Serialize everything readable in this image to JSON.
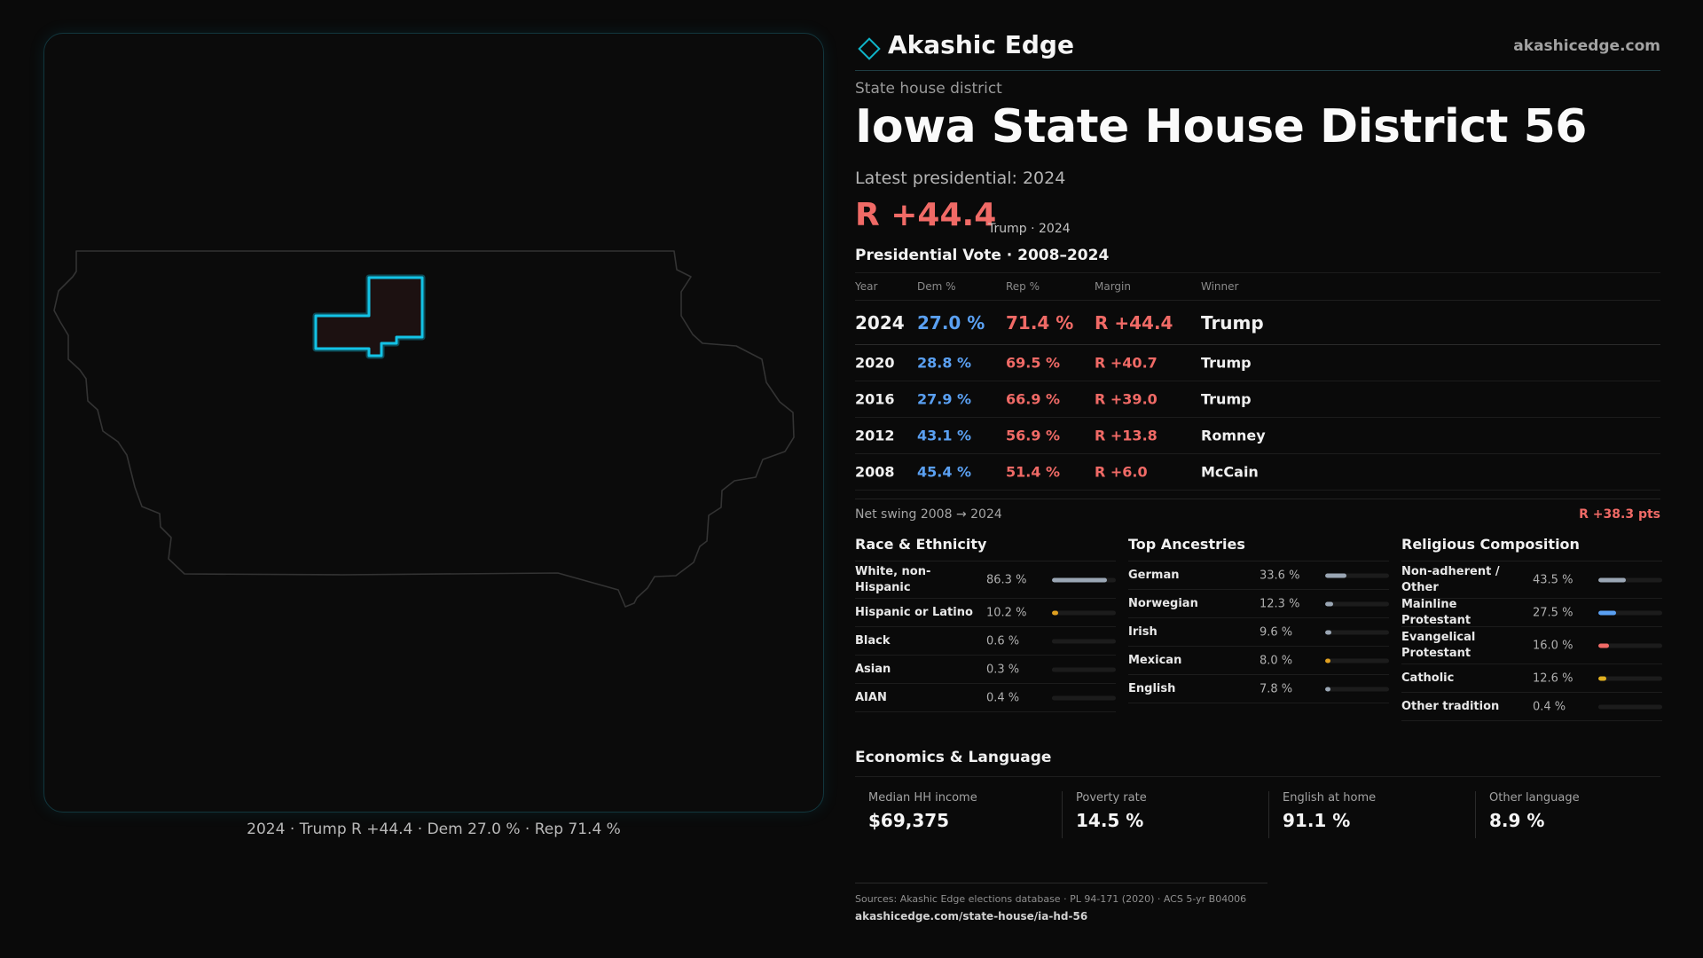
{
  "brand": {
    "name": "Akashic Edge",
    "url": "akashicedge.com",
    "logo_icon": "diamond-outline-icon",
    "accent": "#0fb4c8"
  },
  "district": {
    "kind": "State house district",
    "title": "Iowa State House District 56",
    "latest_label": "Latest presidential: 2024",
    "margin": "R +44.4",
    "margin_meta": "Trump · 2024"
  },
  "map": {
    "caption": "2024 · Trump R +44.4 · Dem 27.0 % · Rep 71.4 %",
    "state_outline_color": "#3a3a3a",
    "district_outline_color": "#13c3e6"
  },
  "votes": {
    "title": "Presidential Vote · 2008–2024",
    "headers": {
      "year": "Year",
      "dem": "Dem %",
      "rep": "Rep %",
      "margin": "Margin",
      "winner": "Winner"
    },
    "rows": [
      {
        "year": "2024",
        "dem": "27.0 %",
        "rep": "71.4 %",
        "margin": "R +44.4",
        "winner": "Trump"
      },
      {
        "year": "2020",
        "dem": "28.8 %",
        "rep": "69.5 %",
        "margin": "R +40.7",
        "winner": "Trump"
      },
      {
        "year": "2016",
        "dem": "27.9 %",
        "rep": "66.9 %",
        "margin": "R +39.0",
        "winner": "Trump"
      },
      {
        "year": "2012",
        "dem": "43.1 %",
        "rep": "56.9 %",
        "margin": "R +13.8",
        "winner": "Romney"
      },
      {
        "year": "2008",
        "dem": "45.4 %",
        "rep": "51.4 %",
        "margin": "R +6.0",
        "winner": "McCain"
      }
    ],
    "swing_label": "Net swing 2008 → 2024",
    "swing_value": "R +38.3 pts"
  },
  "race": {
    "title": "Race & Ethnicity",
    "rows": [
      {
        "label": "White, non-Hispanic",
        "value": "86.3 %",
        "pct": 86.3,
        "color": "#9aa6b4"
      },
      {
        "label": "Hispanic or Latino",
        "value": "10.2 %",
        "pct": 10.2,
        "color": "#e0a020"
      },
      {
        "label": "Black",
        "value": "0.6 %",
        "pct": 0.6,
        "color": "#1c1c1c"
      },
      {
        "label": "Asian",
        "value": "0.3 %",
        "pct": 0.3,
        "color": "#1c1c1c"
      },
      {
        "label": "AIAN",
        "value": "0.4 %",
        "pct": 0.4,
        "color": "#1c1c1c"
      }
    ]
  },
  "ancestry": {
    "title": "Top Ancestries",
    "rows": [
      {
        "label": "German",
        "value": "33.6 %",
        "pct": 33.6,
        "color": "#9aa6b4"
      },
      {
        "label": "Norwegian",
        "value": "12.3 %",
        "pct": 12.3,
        "color": "#9aa6b4"
      },
      {
        "label": "Irish",
        "value": "9.6 %",
        "pct": 9.6,
        "color": "#9aa6b4"
      },
      {
        "label": "Mexican",
        "value": "8.0 %",
        "pct": 8.0,
        "color": "#e0a020"
      },
      {
        "label": "English",
        "value": "7.8 %",
        "pct": 7.8,
        "color": "#9aa6b4"
      }
    ]
  },
  "religion": {
    "title": "Religious Composition",
    "rows": [
      {
        "label": "Non-adherent / Other",
        "value": "43.5 %",
        "pct": 43.5,
        "color": "#9aa6b4"
      },
      {
        "label": "Mainline Protestant",
        "value": "27.5 %",
        "pct": 27.5,
        "color": "#5aa0f2"
      },
      {
        "label": "Evangelical Protestant",
        "value": "16.0 %",
        "pct": 16.0,
        "color": "#f06a66"
      },
      {
        "label": "Catholic",
        "value": "12.6 %",
        "pct": 12.6,
        "color": "#e0b020"
      },
      {
        "label": "Other tradition",
        "value": "0.4 %",
        "pct": 0.4,
        "color": "#1c1c1c"
      }
    ]
  },
  "economics": {
    "title": "Economics & Language",
    "items": [
      {
        "label": "Median HH income",
        "value": "$69,375"
      },
      {
        "label": "Poverty rate",
        "value": "14.5 %"
      },
      {
        "label": "English at home",
        "value": "91.1 %"
      },
      {
        "label": "Other language",
        "value": "8.9 %"
      }
    ]
  },
  "footer": {
    "sources": "Sources: Akashic Edge elections database · PL 94-171 (2020) · ACS 5-yr B04006",
    "url": "akashicedge.com/state-house/ia-hd-56"
  }
}
